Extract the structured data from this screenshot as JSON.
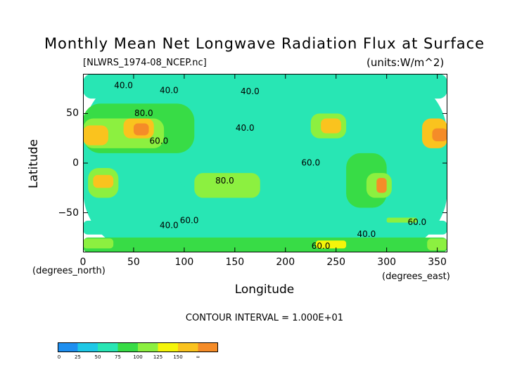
{
  "chart_data": {
    "type": "heatmap",
    "title": "Monthly Mean Net Longwave Radiation Flux at Surface",
    "subtitle": "[NLWRS_1974-08_NCEP.nc]",
    "units": "(units:W/m^2)",
    "xlabel": "Longitude",
    "ylabel": "Latitude",
    "x_direction_label": "(degrees_east)",
    "y_direction_label": "(degrees_north)",
    "xlim": [
      0,
      360
    ],
    "ylim": [
      -90,
      90
    ],
    "x_ticks": [
      0,
      50,
      100,
      150,
      200,
      250,
      300,
      350
    ],
    "y_ticks": [
      50,
      0,
      -50
    ],
    "contour_interval_text": "CONTOUR INTERVAL = 1.000E+01",
    "contour_labels": [
      {
        "text": "40.0",
        "lon": 40,
        "lat": 78
      },
      {
        "text": "40.0",
        "lon": 85,
        "lat": 73
      },
      {
        "text": "40.0",
        "lon": 165,
        "lat": 72
      },
      {
        "text": "80.0",
        "lon": 60,
        "lat": 50
      },
      {
        "text": "40.0",
        "lon": 160,
        "lat": 35
      },
      {
        "text": "60.0",
        "lon": 75,
        "lat": 22
      },
      {
        "text": "60.0",
        "lon": 225,
        "lat": 0
      },
      {
        "text": "80.0",
        "lon": 140,
        "lat": -18
      },
      {
        "text": "40.0",
        "lon": 85,
        "lat": -63
      },
      {
        "text": "60.0",
        "lon": 105,
        "lat": -58
      },
      {
        "text": "40.0",
        "lon": 280,
        "lat": -72
      },
      {
        "text": "60.0",
        "lon": 330,
        "lat": -60
      },
      {
        "text": "60.0",
        "lon": 235,
        "lat": -84
      }
    ],
    "legend": {
      "bounds": [
        0,
        25,
        50,
        75,
        100,
        125,
        150,
        175
      ],
      "labels": [
        "0",
        "25",
        "50",
        "75",
        "100",
        "125",
        "150",
        "∞"
      ],
      "colors": [
        "#1e8ff0",
        "#1ec8e6",
        "#28e6b4",
        "#38dc46",
        "#8cf040",
        "#f5f50a",
        "#fac31e",
        "#f58c28",
        "#ee5014",
        "#f01414"
      ]
    },
    "regions": [
      {
        "lon": [
          0,
          360
        ],
        "lat": [
          -90,
          90
        ],
        "value": 45
      },
      {
        "lon": [
          0,
          360
        ],
        "lat": [
          65,
          90
        ],
        "value": 42
      },
      {
        "lon": [
          90,
          250
        ],
        "lat": [
          -30,
          50
        ],
        "value": 33
      },
      {
        "lon": [
          0,
          110
        ],
        "lat": [
          10,
          60
        ],
        "value": 62
      },
      {
        "lon": [
          0,
          80
        ],
        "lat": [
          15,
          45
        ],
        "value": 95
      },
      {
        "lon": [
          0,
          25
        ],
        "lat": [
          18,
          38
        ],
        "value": 128
      },
      {
        "lon": [
          40,
          70
        ],
        "lat": [
          25,
          45
        ],
        "value": 140
      },
      {
        "lon": [
          50,
          65
        ],
        "lat": [
          28,
          40
        ],
        "value": 165
      },
      {
        "lon": [
          225,
          260
        ],
        "lat": [
          25,
          50
        ],
        "value": 85
      },
      {
        "lon": [
          235,
          255
        ],
        "lat": [
          30,
          45
        ],
        "value": 140
      },
      {
        "lon": [
          335,
          360
        ],
        "lat": [
          15,
          45
        ],
        "value": 125
      },
      {
        "lon": [
          345,
          360
        ],
        "lat": [
          22,
          35
        ],
        "value": 150
      },
      {
        "lon": [
          5,
          35
        ],
        "lat": [
          -35,
          -5
        ],
        "value": 95
      },
      {
        "lon": [
          10,
          30
        ],
        "lat": [
          -25,
          -12
        ],
        "value": 125
      },
      {
        "lon": [
          110,
          175
        ],
        "lat": [
          -35,
          -10
        ],
        "value": 88
      },
      {
        "lon": [
          260,
          300
        ],
        "lat": [
          -45,
          10
        ],
        "value": 62
      },
      {
        "lon": [
          280,
          305
        ],
        "lat": [
          -35,
          -10
        ],
        "value": 95
      },
      {
        "lon": [
          290,
          300
        ],
        "lat": [
          -30,
          -15
        ],
        "value": 150
      },
      {
        "lon": [
          0,
          360
        ],
        "lat": [
          -72,
          -58
        ],
        "value": 32
      },
      {
        "lon": [
          0,
          360
        ],
        "lat": [
          -90,
          -75
        ],
        "value": 62
      },
      {
        "lon": [
          0,
          30
        ],
        "lat": [
          -86,
          -76
        ],
        "value": 95
      },
      {
        "lon": [
          230,
          260
        ],
        "lat": [
          -86,
          -78
        ],
        "value": 100
      },
      {
        "lon": [
          300,
          330
        ],
        "lat": [
          -60,
          -55
        ],
        "value": 95
      },
      {
        "lon": [
          340,
          360
        ],
        "lat": [
          -88,
          -76
        ],
        "value": 92
      }
    ]
  }
}
